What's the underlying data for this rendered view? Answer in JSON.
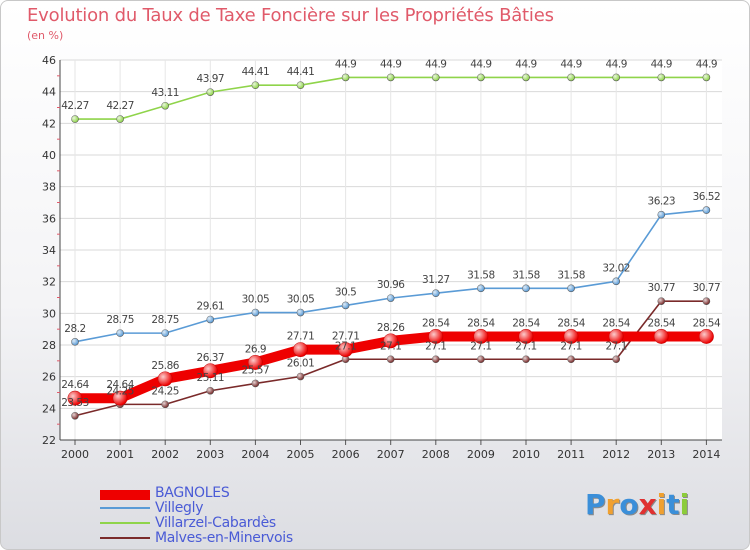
{
  "chart_data": {
    "type": "line",
    "title": "Evolution du Taux de Taxe Foncière sur les Propriétés Bâties",
    "subtitle": "(en %)",
    "xlabel": "",
    "ylabel": "",
    "x": [
      "2000",
      "2001",
      "2002",
      "2003",
      "2004",
      "2005",
      "2006",
      "2007",
      "2008",
      "2009",
      "2010",
      "2011",
      "2012",
      "2013",
      "2014"
    ],
    "ylim": [
      22,
      46
    ],
    "yticks": [
      "22",
      "24",
      "26",
      "28",
      "30",
      "32",
      "34",
      "36",
      "38",
      "40",
      "42",
      "44",
      "46"
    ],
    "grid": true,
    "series": [
      {
        "name": "BAGNOLES",
        "color": "#ee0000",
        "values": [
          24.64,
          24.64,
          25.86,
          26.37,
          26.9,
          27.71,
          27.71,
          28.26,
          28.54,
          28.54,
          28.54,
          28.54,
          28.54,
          28.54,
          28.54
        ],
        "labels": [
          "24.64",
          "24.64",
          "25.86",
          "26.37",
          "26.9",
          "27.71",
          "27.71",
          "28.26",
          "28.54",
          "28.54",
          "28.54",
          "28.54",
          "28.54",
          "28.54",
          "28.54"
        ]
      },
      {
        "name": "Villegly",
        "color": "#5a9bd6",
        "values": [
          28.2,
          28.75,
          28.75,
          29.61,
          30.05,
          30.05,
          30.5,
          30.96,
          31.27,
          31.58,
          31.58,
          31.58,
          32.02,
          36.23,
          36.52
        ],
        "labels": [
          "28.2",
          "28.75",
          "28.75",
          "29.61",
          "30.05",
          "30.05",
          "30.5",
          "30.96",
          "31.27",
          "31.58",
          "31.58",
          "31.58",
          "32.02",
          "36.23",
          "36.52"
        ]
      },
      {
        "name": "Villarzel-Cabardès",
        "color": "#8fd44a",
        "values": [
          42.27,
          42.27,
          43.11,
          43.97,
          44.41,
          44.41,
          44.9,
          44.9,
          44.9,
          44.9,
          44.9,
          44.9,
          44.9,
          44.9,
          44.9
        ],
        "labels": [
          "42.27",
          "42.27",
          "43.11",
          "43.97",
          "44.41",
          "44.41",
          "44.9",
          "44.9",
          "44.9",
          "44.9",
          "44.9",
          "44.9",
          "44.9",
          "44.9",
          "44.9"
        ]
      },
      {
        "name": "Malves-en-Minervois",
        "color": "#7a2a2a",
        "values": [
          23.53,
          24.25,
          24.25,
          25.11,
          25.57,
          26.01,
          27.1,
          27.1,
          27.1,
          27.1,
          27.1,
          27.1,
          27.1,
          30.77,
          30.77
        ],
        "labels": [
          "23.53",
          "24.25",
          "24.25",
          "25.11",
          "25.57",
          "26.01",
          "27.1",
          "27.1",
          "27.1",
          "27.1",
          "27.1",
          "27.1",
          "27.1",
          "30.77",
          "30.77"
        ]
      }
    ]
  },
  "legend": {
    "items": [
      "BAGNOLES",
      "Villegly",
      "Villarzel-Cabardès",
      "Malves-en-Minervois"
    ]
  },
  "logo": {
    "text": "Proxiti",
    "letters": [
      "P",
      "r",
      "o",
      "x",
      "i",
      "t",
      "i"
    ],
    "colors": [
      "#3b8fd9",
      "#f0a030",
      "#3b8fd9",
      "#e03030",
      "#f0a030",
      "#3b8fd9",
      "#8ccc3a"
    ]
  }
}
